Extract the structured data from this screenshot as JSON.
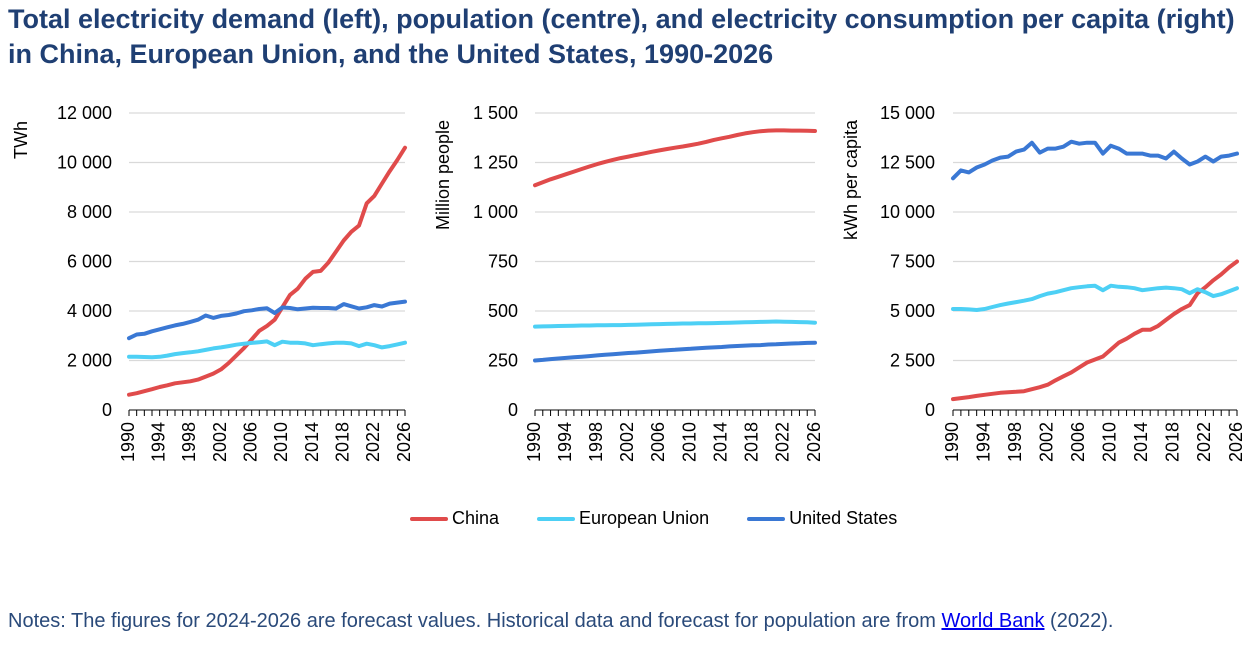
{
  "title": "Total electricity demand (left), population (centre), and electricity consumption per capita (right) in China, European Union, and the United States, 1990-2026",
  "legend": [
    {
      "name": "China",
      "color": "#e04b4b"
    },
    {
      "name": "European Union",
      "color": "#4dd0f5"
    },
    {
      "name": "United States",
      "color": "#3a78d4"
    }
  ],
  "notes": {
    "text_before": "Notes: The figures for 2024-2026 are forecast values. Historical data and forecast for population are from ",
    "link_text": "World Bank",
    "text_after": " (2022)."
  },
  "chart_data": [
    {
      "type": "line",
      "title": "Total electricity demand",
      "xlabel": "",
      "ylabel": "TWh",
      "ylim": [
        0,
        12000
      ],
      "yticks": [
        0,
        2000,
        4000,
        6000,
        8000,
        10000,
        12000
      ],
      "ytick_labels": [
        "0",
        "2 000",
        "4 000",
        "6 000",
        "8 000",
        "10 000",
        "12 000"
      ],
      "grid": true,
      "x": [
        1990,
        1991,
        1992,
        1993,
        1994,
        1995,
        1996,
        1997,
        1998,
        1999,
        2000,
        2001,
        2002,
        2003,
        2004,
        2005,
        2006,
        2007,
        2008,
        2009,
        2010,
        2011,
        2012,
        2013,
        2014,
        2015,
        2016,
        2017,
        2018,
        2019,
        2020,
        2021,
        2022,
        2023,
        2024,
        2025,
        2026
      ],
      "xtick_labels": [
        "1990",
        "1994",
        "1998",
        "2002",
        "2006",
        "2010",
        "2014",
        "2018",
        "2022",
        "2026"
      ],
      "series": [
        {
          "name": "China",
          "values": [
            620,
            680,
            760,
            840,
            930,
            1000,
            1080,
            1120,
            1160,
            1230,
            1350,
            1470,
            1640,
            1900,
            2200,
            2500,
            2850,
            3200,
            3400,
            3650,
            4150,
            4650,
            4900,
            5300,
            5580,
            5620,
            5950,
            6400,
            6850,
            7200,
            7450,
            8350,
            8650,
            9150,
            9650,
            10100,
            10600
          ]
        },
        {
          "name": "European Union",
          "values": [
            2150,
            2150,
            2140,
            2130,
            2150,
            2200,
            2260,
            2300,
            2330,
            2370,
            2430,
            2490,
            2530,
            2580,
            2640,
            2680,
            2710,
            2740,
            2770,
            2620,
            2760,
            2720,
            2720,
            2690,
            2620,
            2660,
            2690,
            2720,
            2720,
            2690,
            2580,
            2680,
            2620,
            2530,
            2580,
            2650,
            2720
          ]
        },
        {
          "name": "United States",
          "values": [
            2900,
            3050,
            3080,
            3180,
            3260,
            3340,
            3420,
            3480,
            3560,
            3650,
            3820,
            3720,
            3800,
            3840,
            3900,
            3990,
            4030,
            4080,
            4110,
            3920,
            4140,
            4120,
            4070,
            4100,
            4130,
            4120,
            4120,
            4100,
            4280,
            4190,
            4100,
            4150,
            4240,
            4180,
            4300,
            4340,
            4380
          ]
        }
      ]
    },
    {
      "type": "line",
      "title": "Population",
      "xlabel": "",
      "ylabel": "Million people",
      "ylim": [
        0,
        1500
      ],
      "yticks": [
        0,
        250,
        500,
        750,
        1000,
        1250,
        1500
      ],
      "ytick_labels": [
        "0",
        "250",
        "500",
        "750",
        "1 000",
        "1 250",
        "1 500"
      ],
      "grid": true,
      "x": [
        1990,
        1991,
        1992,
        1993,
        1994,
        1995,
        1996,
        1997,
        1998,
        1999,
        2000,
        2001,
        2002,
        2003,
        2004,
        2005,
        2006,
        2007,
        2008,
        2009,
        2010,
        2011,
        2012,
        2013,
        2014,
        2015,
        2016,
        2017,
        2018,
        2019,
        2020,
        2021,
        2022,
        2023,
        2024,
        2025,
        2026
      ],
      "xtick_labels": [
        "1990",
        "1994",
        "1998",
        "2002",
        "2006",
        "2010",
        "2014",
        "2018",
        "2022",
        "2026"
      ],
      "series": [
        {
          "name": "China",
          "values": [
            1135,
            1150,
            1165,
            1178,
            1191,
            1204,
            1217,
            1230,
            1242,
            1253,
            1263,
            1272,
            1280,
            1288,
            1296,
            1304,
            1311,
            1318,
            1325,
            1331,
            1338,
            1345,
            1354,
            1364,
            1372,
            1380,
            1389,
            1397,
            1403,
            1408,
            1411,
            1412,
            1412,
            1411,
            1411,
            1410,
            1409
          ]
        },
        {
          "name": "European Union",
          "values": [
            421,
            422,
            423,
            424,
            425,
            426,
            427,
            427,
            428,
            428,
            429,
            429,
            430,
            431,
            432,
            433,
            434,
            435,
            436,
            437,
            437,
            438,
            438,
            439,
            440,
            441,
            442,
            443,
            444,
            445,
            446,
            447,
            446,
            445,
            444,
            443,
            441
          ]
        },
        {
          "name": "United States",
          "values": [
            250,
            253,
            257,
            260,
            263,
            266,
            269,
            272,
            276,
            279,
            282,
            285,
            288,
            290,
            293,
            296,
            299,
            302,
            304,
            307,
            309,
            312,
            314,
            316,
            318,
            321,
            323,
            325,
            327,
            328,
            331,
            332,
            334,
            336,
            337,
            339,
            340
          ]
        }
      ]
    },
    {
      "type": "line",
      "title": "Electricity consumption per capita",
      "xlabel": "",
      "ylabel": "kWh per capita",
      "ylim": [
        0,
        15000
      ],
      "yticks": [
        0,
        2500,
        5000,
        7500,
        10000,
        12500,
        15000
      ],
      "ytick_labels": [
        "0",
        "2 500",
        "5 000",
        "7 500",
        "10 000",
        "12 500",
        "15 000"
      ],
      "grid": true,
      "x": [
        1990,
        1991,
        1992,
        1993,
        1994,
        1995,
        1996,
        1997,
        1998,
        1999,
        2000,
        2001,
        2002,
        2003,
        2004,
        2005,
        2006,
        2007,
        2008,
        2009,
        2010,
        2011,
        2012,
        2013,
        2014,
        2015,
        2016,
        2017,
        2018,
        2019,
        2020,
        2021,
        2022,
        2023,
        2024,
        2025,
        2026
      ],
      "xtick_labels": [
        "1990",
        "1994",
        "1998",
        "2002",
        "2006",
        "2010",
        "2014",
        "2018",
        "2022",
        "2026"
      ],
      "series": [
        {
          "name": "China",
          "values": [
            550,
            600,
            650,
            710,
            770,
            820,
            870,
            900,
            920,
            950,
            1050,
            1150,
            1280,
            1500,
            1700,
            1900,
            2150,
            2400,
            2550,
            2700,
            3050,
            3400,
            3600,
            3850,
            4050,
            4050,
            4250,
            4550,
            4850,
            5100,
            5300,
            5900,
            6200,
            6550,
            6850,
            7200,
            7500
          ]
        },
        {
          "name": "European Union",
          "values": [
            5100,
            5100,
            5080,
            5050,
            5100,
            5200,
            5300,
            5380,
            5450,
            5520,
            5600,
            5750,
            5880,
            5950,
            6050,
            6150,
            6200,
            6250,
            6280,
            6050,
            6280,
            6220,
            6200,
            6150,
            6050,
            6100,
            6150,
            6180,
            6150,
            6100,
            5900,
            6100,
            5950,
            5750,
            5850,
            6000,
            6150
          ]
        },
        {
          "name": "United States",
          "values": [
            11700,
            12100,
            12000,
            12250,
            12400,
            12600,
            12750,
            12800,
            13050,
            13150,
            13500,
            13000,
            13200,
            13200,
            13300,
            13550,
            13450,
            13500,
            13500,
            12950,
            13350,
            13200,
            12950,
            12950,
            12950,
            12850,
            12850,
            12700,
            13050,
            12700,
            12400,
            12550,
            12800,
            12550,
            12800,
            12850,
            12950
          ]
        }
      ]
    }
  ]
}
